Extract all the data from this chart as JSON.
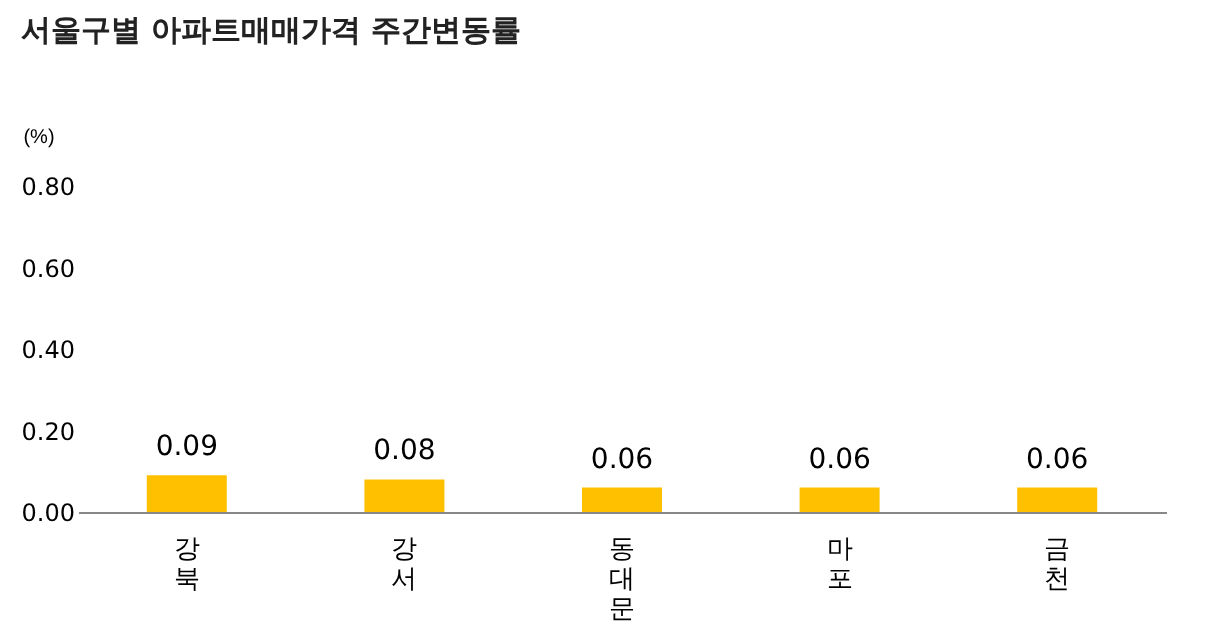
{
  "chart_data": {
    "type": "bar",
    "title": "서울구별 아파트매매가격 주간변동률",
    "ylabel": "(%)",
    "categories": [
      "강북",
      "강서",
      "동대문",
      "마포",
      "금천"
    ],
    "values": [
      0.09,
      0.08,
      0.06,
      0.06,
      0.06
    ],
    "color": "#ffc000",
    "ylim": [
      0,
      0.8
    ],
    "yticks": [
      {
        "value": 0,
        "label": "0.00"
      },
      {
        "value": 0.2,
        "label": "0.20"
      },
      {
        "value": 0.4,
        "label": "0.40"
      },
      {
        "value": 0.6,
        "label": "0.60"
      },
      {
        "value": 0.8,
        "label": "0.80"
      }
    ],
    "grid": false,
    "data_labels": true
  }
}
